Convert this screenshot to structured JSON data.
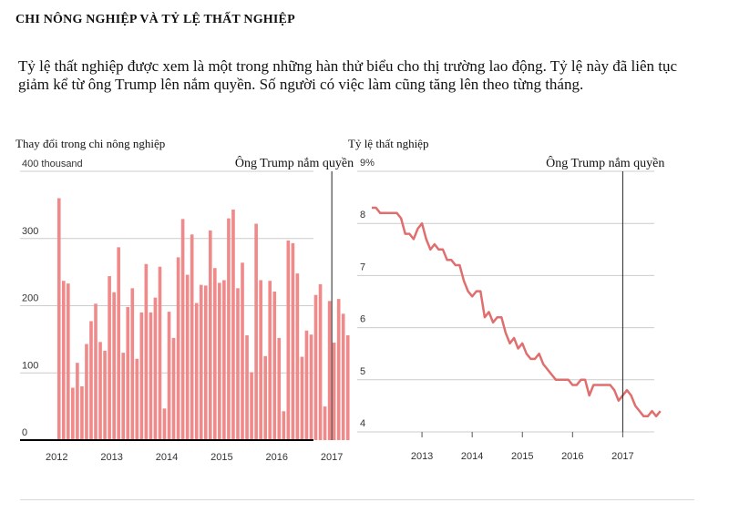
{
  "header": {
    "title": "CHI NÔNG NGHIỆP VÀ TỶ LỆ THẤT NGHIỆP",
    "intro": "Tỷ lệ thất nghiệp được xem là một trong những hàn thử biểu cho thị trường lao động. Tỷ lệ này đã liên tục giảm kể từ ông Trump lên nắm quyền. Số người có việc làm cũng tăng lên theo từng tháng."
  },
  "colors": {
    "bar": "#f08a8a",
    "line": "#e06e6e",
    "grid": "#cccccc",
    "axis": "#000000",
    "marker": "#222222"
  },
  "chart_data": [
    {
      "type": "bar",
      "title": "Thay đổi trong chi nông nghiệp",
      "y_ticks": [
        {
          "value": 0,
          "label": "0"
        },
        {
          "value": 100,
          "label": "100"
        },
        {
          "value": 200,
          "label": "200"
        },
        {
          "value": 300,
          "label": "300"
        },
        {
          "value": 400,
          "label": "400 thousand"
        }
      ],
      "ylim": [
        0,
        400
      ],
      "x_ticks": [
        "2012",
        "2013",
        "2014",
        "2015",
        "2016",
        "2017"
      ],
      "start": "2012-01",
      "grid": true,
      "annotation": {
        "label": "Ông Trump nắm quyền",
        "at": "2017-01"
      },
      "values": [
        360,
        237,
        233,
        78,
        115,
        80,
        143,
        177,
        203,
        146,
        133,
        244,
        220,
        287,
        130,
        198,
        226,
        121,
        190,
        262,
        190,
        212,
        258,
        47,
        191,
        152,
        272,
        329,
        246,
        306,
        204,
        231,
        230,
        312,
        256,
        234,
        238,
        330,
        343,
        226,
        264,
        156,
        101,
        322,
        238,
        125,
        237,
        221,
        152,
        43,
        297,
        293,
        248,
        124,
        163,
        157,
        216,
        232,
        50,
        207,
        145,
        210,
        188,
        156
      ]
    },
    {
      "type": "line",
      "title": "Tỷ lệ thất nghiệp",
      "y_ticks": [
        {
          "value": 4,
          "label": "4"
        },
        {
          "value": 5,
          "label": "5"
        },
        {
          "value": 6,
          "label": "6"
        },
        {
          "value": 7,
          "label": "7"
        },
        {
          "value": 8,
          "label": "8"
        },
        {
          "value": 9,
          "label": "9%"
        }
      ],
      "ylim": [
        4,
        9
      ],
      "x_ticks": [
        "2013",
        "2014",
        "2015",
        "2016",
        "2017"
      ],
      "start": "2012-01",
      "grid": true,
      "annotation": {
        "label": "Ông Trump nắm quyền",
        "at": "2017-01"
      },
      "values": [
        8.3,
        8.3,
        8.2,
        8.2,
        8.2,
        8.2,
        8.2,
        8.1,
        7.8,
        7.8,
        7.7,
        7.9,
        8.0,
        7.7,
        7.5,
        7.6,
        7.5,
        7.5,
        7.3,
        7.3,
        7.2,
        7.2,
        6.9,
        6.7,
        6.6,
        6.7,
        6.7,
        6.2,
        6.3,
        6.1,
        6.2,
        6.2,
        5.9,
        5.7,
        5.8,
        5.6,
        5.7,
        5.5,
        5.4,
        5.4,
        5.5,
        5.3,
        5.2,
        5.1,
        5.0,
        5.0,
        5.0,
        5.0,
        4.9,
        4.9,
        5.0,
        5.0,
        4.7,
        4.9,
        4.9,
        4.9,
        4.9,
        4.9,
        4.8,
        4.6,
        4.7,
        4.8,
        4.7,
        4.5,
        4.4,
        4.3,
        4.3,
        4.4,
        4.3,
        4.4
      ]
    }
  ]
}
